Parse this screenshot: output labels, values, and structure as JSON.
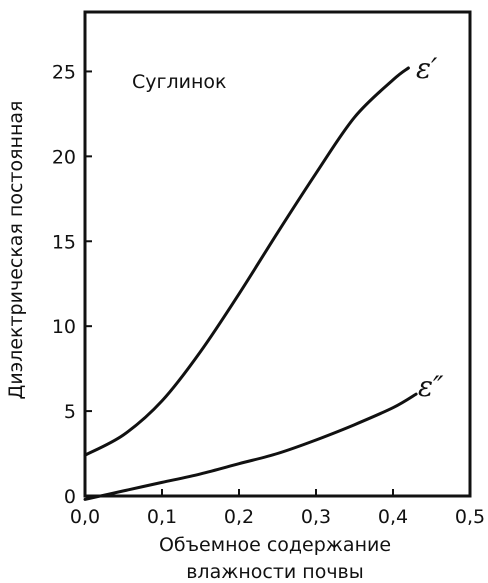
{
  "chart_data": {
    "type": "line",
    "xlabel_lines": [
      "Объемное содержание",
      "влажности почвы"
    ],
    "ylabel": "Диэлектрическая постоянная",
    "annotation": "Суглинок",
    "xlim": [
      0,
      0.5
    ],
    "ylim": [
      0,
      28.5
    ],
    "x_ticks": [
      0,
      0.1,
      0.2,
      0.3,
      0.4,
      0.5
    ],
    "x_tick_labels": [
      "0,0",
      "0,1",
      "0,2",
      "0,3",
      "0,4",
      "0,5"
    ],
    "y_ticks": [
      0,
      5,
      10,
      15,
      20,
      25
    ],
    "y_tick_labels": [
      "0",
      "5",
      "10",
      "15",
      "20",
      "25"
    ],
    "grid": false,
    "series": [
      {
        "name": "ε′",
        "x": [
          0.0,
          0.05,
          0.1,
          0.15,
          0.2,
          0.25,
          0.3,
          0.35,
          0.4,
          0.42
        ],
        "y": [
          2.4,
          3.6,
          5.6,
          8.5,
          11.9,
          15.5,
          19.0,
          22.3,
          24.5,
          25.2
        ]
      },
      {
        "name": "ε″",
        "x": [
          0.0,
          0.05,
          0.1,
          0.15,
          0.2,
          0.25,
          0.3,
          0.35,
          0.4,
          0.43
        ],
        "y": [
          -0.2,
          0.3,
          0.8,
          1.3,
          1.9,
          2.5,
          3.3,
          4.2,
          5.2,
          6.0
        ]
      }
    ]
  }
}
